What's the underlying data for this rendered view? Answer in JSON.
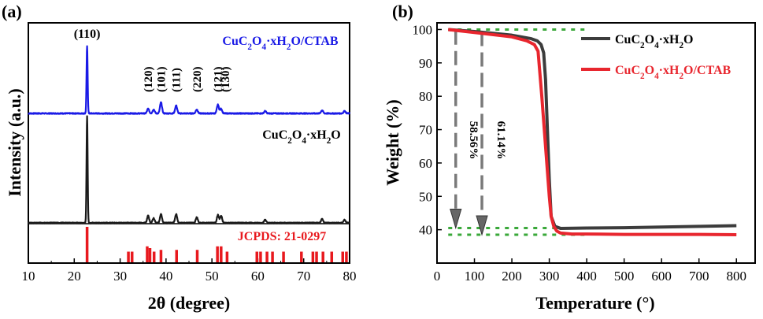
{
  "figure": {
    "panel_a_label": "(a)",
    "panel_b_label": "(b)"
  },
  "chart_data": [
    {
      "type": "line",
      "panel": "(a)",
      "xlabel": "2θ (degree)",
      "ylabel": "Intensity (a.u.)",
      "xlim": [
        10,
        80
      ],
      "xticks": [
        "10",
        "20",
        "30",
        "40",
        "50",
        "60",
        "70",
        "80"
      ],
      "yticks_visible": false,
      "grid": false,
      "series": [
        {
          "name": "CuC2O4·xH2O/CTAB",
          "color": "#1a1ae6",
          "peaks": [
            {
              "x": 22.8,
              "h": 85
            },
            {
              "x": 36.1,
              "h": 6
            },
            {
              "x": 37.3,
              "h": 5
            },
            {
              "x": 38.9,
              "h": 14
            },
            {
              "x": 42.2,
              "h": 10
            },
            {
              "x": 46.7,
              "h": 5
            },
            {
              "x": 51.3,
              "h": 11
            },
            {
              "x": 52.0,
              "h": 6
            },
            {
              "x": 61.6,
              "h": 3
            },
            {
              "x": 74.0,
              "h": 4
            },
            {
              "x": 78.9,
              "h": 3
            }
          ]
        },
        {
          "name": "CuC2O4·xH2O",
          "color": "#1a1a1a",
          "peaks": [
            {
              "x": 22.8,
              "h": 135
            },
            {
              "x": 36.1,
              "h": 9
            },
            {
              "x": 37.3,
              "h": 6
            },
            {
              "x": 38.9,
              "h": 11
            },
            {
              "x": 42.2,
              "h": 11
            },
            {
              "x": 46.7,
              "h": 7
            },
            {
              "x": 51.3,
              "h": 10
            },
            {
              "x": 52.0,
              "h": 9
            },
            {
              "x": 61.6,
              "h": 4
            },
            {
              "x": 74.0,
              "h": 5
            },
            {
              "x": 78.9,
              "h": 4
            }
          ]
        },
        {
          "name": "JCPDS: 21-0297",
          "color": "#e8191e",
          "type": "reference_bars",
          "bars": [
            {
              "x": 22.8,
              "h": 1.0
            },
            {
              "x": 31.8,
              "h": 0.3
            },
            {
              "x": 32.6,
              "h": 0.3
            },
            {
              "x": 35.9,
              "h": 0.45
            },
            {
              "x": 36.5,
              "h": 0.4
            },
            {
              "x": 37.4,
              "h": 0.3
            },
            {
              "x": 38.9,
              "h": 0.35
            },
            {
              "x": 42.3,
              "h": 0.35
            },
            {
              "x": 46.8,
              "h": 0.35
            },
            {
              "x": 51.2,
              "h": 0.45
            },
            {
              "x": 52.0,
              "h": 0.45
            },
            {
              "x": 53.3,
              "h": 0.3
            },
            {
              "x": 59.8,
              "h": 0.3
            },
            {
              "x": 60.6,
              "h": 0.3
            },
            {
              "x": 62.0,
              "h": 0.3
            },
            {
              "x": 63.2,
              "h": 0.3
            },
            {
              "x": 65.6,
              "h": 0.3
            },
            {
              "x": 69.5,
              "h": 0.3
            },
            {
              "x": 72.0,
              "h": 0.3
            },
            {
              "x": 72.8,
              "h": 0.3
            },
            {
              "x": 74.2,
              "h": 0.3
            },
            {
              "x": 76.1,
              "h": 0.3
            },
            {
              "x": 78.5,
              "h": 0.3
            },
            {
              "x": 79.3,
              "h": 0.3
            }
          ]
        }
      ],
      "annotations": [
        {
          "text": "(110)",
          "x": 22.8
        },
        {
          "text": "(120)",
          "x": 36.1
        },
        {
          "text": "(101)",
          "x": 38.9
        },
        {
          "text": "(111)",
          "x": 42.2
        },
        {
          "text": "(220)",
          "x": 46.7
        },
        {
          "text": "(121)",
          "x": 51.3
        },
        {
          "text": "(130)",
          "x": 52.9
        }
      ]
    },
    {
      "type": "line",
      "panel": "(b)",
      "xlabel": "Temperature (°)",
      "ylabel": "Weight (%)",
      "xlim": [
        0,
        850
      ],
      "ylim": [
        30,
        102
      ],
      "xticks": [
        "0",
        "100",
        "200",
        "300",
        "400",
        "500",
        "600",
        "700",
        "800"
      ],
      "yticks": [
        "40",
        "50",
        "60",
        "70",
        "80",
        "90",
        "100"
      ],
      "grid": false,
      "legend_position": "top-right",
      "series": [
        {
          "name": "CuC2O4·xH2O",
          "color": "#3c3c3c",
          "x": [
            30,
            100,
            200,
            250,
            268,
            278,
            285,
            290,
            295,
            300,
            305,
            315,
            330,
            400,
            500,
            600,
            700,
            800
          ],
          "y": [
            100,
            99.4,
            98.3,
            97.3,
            96.6,
            95.5,
            93,
            85,
            70,
            55,
            44,
            41,
            40.4,
            40.5,
            40.6,
            40.8,
            41.0,
            41.2
          ]
        },
        {
          "name": "CuC2O4·xH2O/CTAB",
          "color": "#e8262e",
          "x": [
            30,
            100,
            200,
            240,
            260,
            270,
            280,
            290,
            300,
            305,
            312,
            320,
            330,
            360,
            400,
            500,
            600,
            700,
            800
          ],
          "y": [
            100,
            99.1,
            97.8,
            96.6,
            95.5,
            93.5,
            80,
            65,
            50,
            44,
            41,
            39.6,
            39,
            38.7,
            38.7,
            38.6,
            38.6,
            38.6,
            38.5
          ]
        }
      ],
      "reference_lines": [
        {
          "y": 100,
          "x_from": 30,
          "x_to": 400,
          "color": "#3aa83a"
        },
        {
          "y": 40.5,
          "x_from": 30,
          "x_to": 400,
          "color": "#3aa83a"
        },
        {
          "y": 38.5,
          "x_from": 30,
          "x_to": 400,
          "color": "#3aa83a"
        }
      ],
      "annotations": [
        {
          "text": "58.56%",
          "x": 50
        },
        {
          "text": "61.14%",
          "x": 120
        }
      ],
      "arrows": [
        {
          "x": 50,
          "y_from": 99.7,
          "y_to": 40.5
        },
        {
          "x": 120,
          "y_from": 99.3,
          "y_to": 38.5
        }
      ]
    }
  ]
}
